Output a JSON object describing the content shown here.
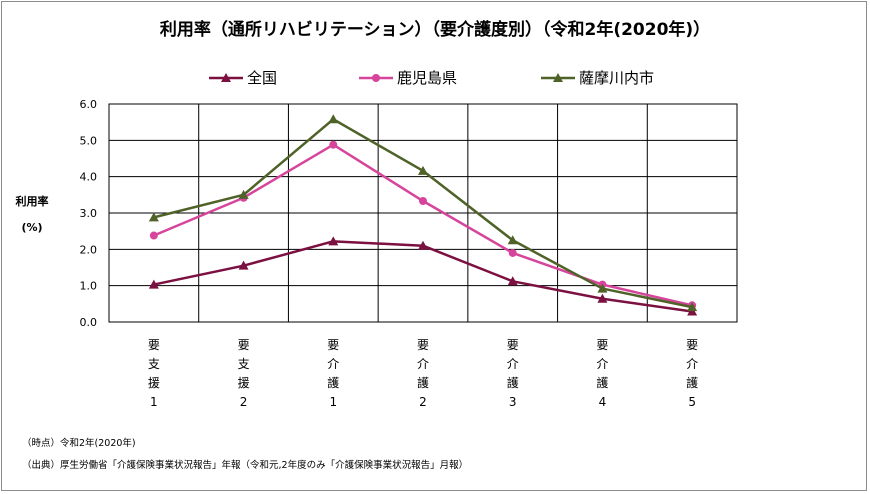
{
  "chart_data": {
    "type": "line",
    "title": "利用率（通所リハビリテーション）（要介護度別）（令和2年(2020年)）",
    "ylabel_line1": "利用率",
    "ylabel_line2": "(%)",
    "ylim": [
      0,
      6
    ],
    "yticks": [
      "0.0",
      "1.0",
      "2.0",
      "3.0",
      "4.0",
      "5.0",
      "6.0"
    ],
    "grid": "horizontal and vertical",
    "legend_position": "top",
    "categories": [
      {
        "chars": [
          "要",
          "支",
          "援"
        ],
        "num": "1"
      },
      {
        "chars": [
          "要",
          "支",
          "援"
        ],
        "num": "2"
      },
      {
        "chars": [
          "要",
          "介",
          "護"
        ],
        "num": "1"
      },
      {
        "chars": [
          "要",
          "介",
          "護"
        ],
        "num": "2"
      },
      {
        "chars": [
          "要",
          "介",
          "護"
        ],
        "num": "3"
      },
      {
        "chars": [
          "要",
          "介",
          "護"
        ],
        "num": "4"
      },
      {
        "chars": [
          "要",
          "介",
          "護"
        ],
        "num": "5"
      }
    ],
    "series": [
      {
        "name": "全国",
        "marker": "triangle",
        "color": "#7b1041",
        "values": [
          1.03,
          1.55,
          2.22,
          2.1,
          1.12,
          0.64,
          0.29
        ]
      },
      {
        "name": "鹿児島県",
        "marker": "circle",
        "color": "#d6459b",
        "values": [
          2.38,
          3.42,
          4.88,
          3.33,
          1.9,
          1.03,
          0.46
        ]
      },
      {
        "name": "薩摩川内市",
        "marker": "triangle",
        "color": "#4f6228",
        "values": [
          2.88,
          3.5,
          5.58,
          4.16,
          2.25,
          0.92,
          0.41
        ]
      }
    ]
  },
  "notes": {
    "time_point": "（時点）令和2年(2020年)",
    "source": "（出典）厚生労働省「介護保険事業状況報告」年報（令和元,2年度のみ「介護保険事業状況報告」月報）"
  }
}
